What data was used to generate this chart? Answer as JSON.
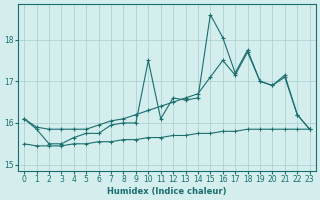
{
  "xlabel": "Humidex (Indice chaleur)",
  "bg_color": "#d4eeee",
  "grid_color": "#a8cccc",
  "line_color": "#1a6e6e",
  "xlim": [
    -0.5,
    23.5
  ],
  "ylim": [
    14.85,
    18.85
  ],
  "yticks": [
    15,
    16,
    17,
    18
  ],
  "xticks": [
    0,
    1,
    2,
    3,
    4,
    5,
    6,
    7,
    8,
    9,
    10,
    11,
    12,
    13,
    14,
    15,
    16,
    17,
    18,
    19,
    20,
    21,
    22,
    23
  ],
  "line1_x": [
    0,
    1,
    2,
    3,
    4,
    5,
    6,
    7,
    8,
    9,
    10,
    11,
    12,
    13,
    14,
    15,
    16,
    17,
    18,
    19,
    20,
    21,
    22,
    23
  ],
  "line1_y": [
    16.1,
    15.85,
    15.5,
    15.5,
    15.65,
    15.75,
    15.75,
    15.95,
    16.0,
    16.0,
    17.5,
    16.1,
    16.6,
    16.55,
    16.6,
    18.6,
    18.05,
    17.2,
    17.75,
    17.0,
    16.9,
    17.15,
    16.2,
    15.85
  ],
  "line2_x": [
    0,
    1,
    2,
    3,
    4,
    5,
    6,
    7,
    8,
    9,
    10,
    11,
    12,
    13,
    14,
    15,
    16,
    17,
    18,
    19,
    20,
    21,
    22,
    23
  ],
  "line2_y": [
    16.1,
    15.9,
    15.85,
    15.85,
    15.85,
    15.85,
    15.95,
    16.05,
    16.1,
    16.2,
    16.3,
    16.4,
    16.5,
    16.6,
    16.7,
    17.1,
    17.5,
    17.15,
    17.7,
    17.0,
    16.9,
    17.1,
    16.2,
    15.85
  ],
  "line3_x": [
    0,
    1,
    2,
    3,
    4,
    5,
    6,
    7,
    8,
    9,
    10,
    11,
    12,
    13,
    14,
    15,
    16,
    17,
    18,
    19,
    20,
    21,
    22,
    23
  ],
  "line3_y": [
    15.5,
    15.45,
    15.45,
    15.45,
    15.5,
    15.5,
    15.55,
    15.55,
    15.6,
    15.6,
    15.65,
    15.65,
    15.7,
    15.7,
    15.75,
    15.75,
    15.8,
    15.8,
    15.85,
    15.85,
    15.85,
    15.85,
    15.85,
    15.85
  ]
}
